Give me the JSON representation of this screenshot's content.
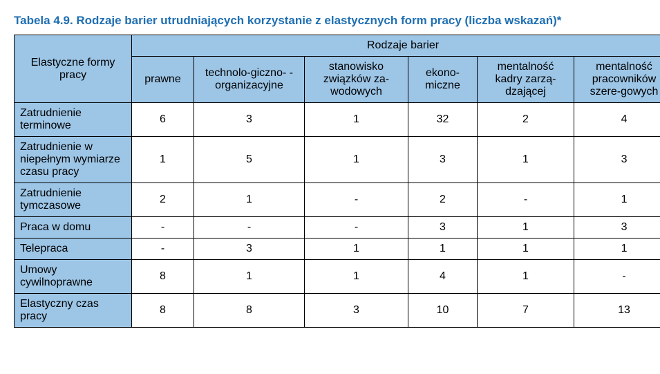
{
  "title": "Tabela 4.9. Rodzaje barier utrudniających korzystanie z elastycznych form pracy (liczba wskazań)*",
  "rowhead_label": "Elastyczne formy pracy",
  "group_header": "Rodzaje barier",
  "columns": [
    "prawne",
    "technolo-giczno-\n-organizacyjne",
    "stanowisko związków za-wodowych",
    "ekono-miczne",
    "mentalność kadry zarzą-dzającej",
    "mentalność pracowników szere-gowych"
  ],
  "rows": [
    {
      "label": "Zatrudnienie terminowe",
      "cells": [
        "6",
        "3",
        "1",
        "32",
        "2",
        "4"
      ]
    },
    {
      "label": "Zatrudnienie w niepełnym wymiarze czasu pracy",
      "cells": [
        "1",
        "5",
        "1",
        "3",
        "1",
        "3"
      ]
    },
    {
      "label": "Zatrudnienie tymczasowe",
      "cells": [
        "2",
        "1",
        "-",
        "2",
        "-",
        "1"
      ]
    },
    {
      "label": "Praca w domu",
      "cells": [
        "-",
        "-",
        "-",
        "3",
        "1",
        "3"
      ]
    },
    {
      "label": "Telepraca",
      "cells": [
        "-",
        "3",
        "1",
        "1",
        "1",
        "1"
      ]
    },
    {
      "label": "Umowy cywilnoprawne",
      "cells": [
        "8",
        "1",
        "1",
        "4",
        "1",
        "-"
      ]
    },
    {
      "label": "Elastyczny czas pracy",
      "cells": [
        "8",
        "8",
        "3",
        "10",
        "7",
        "13"
      ]
    }
  ],
  "colors": {
    "header_bg": "#9cc5e6",
    "title_color": "#1f6fb2",
    "border_color": "#000000",
    "text_color": "#000000",
    "cell_bg": "#ffffff"
  },
  "fontsize": {
    "title": 17,
    "cell": 16
  }
}
